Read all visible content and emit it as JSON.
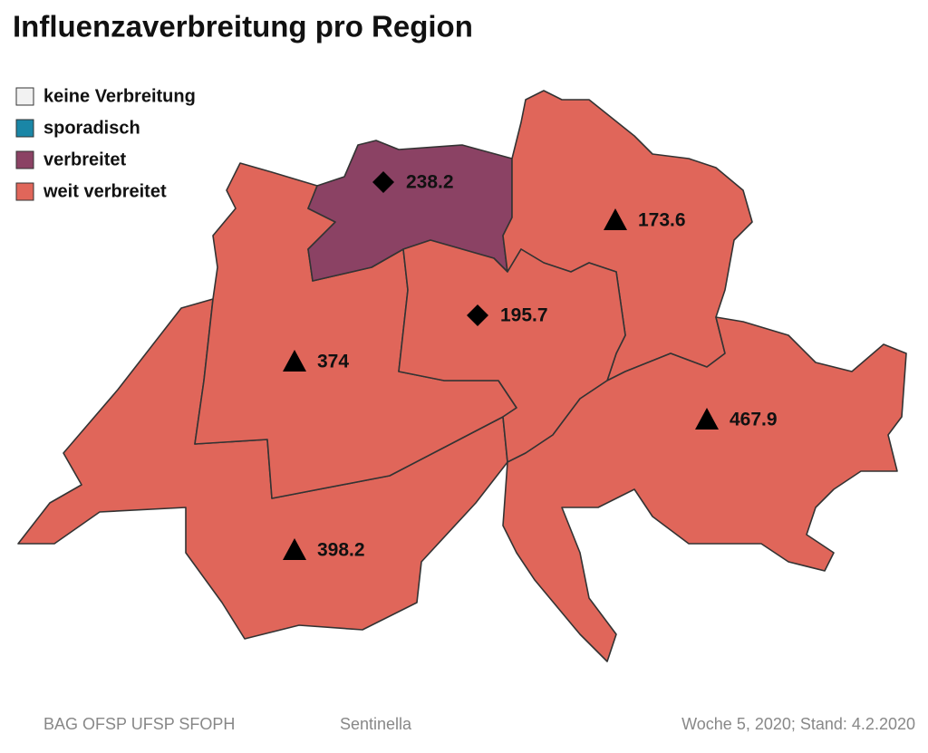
{
  "title": "Influenzaverbreitung pro Region",
  "legend": [
    {
      "label": "keine Verbreitung",
      "color": "#f2f2f2"
    },
    {
      "label": "sporadisch",
      "color": "#1a86a6"
    },
    {
      "label": "verbreitet",
      "color": "#8b4264"
    },
    {
      "label": "weit verbreitet",
      "color": "#e0665a"
    }
  ],
  "regions": [
    {
      "value": 238.2,
      "marker": "diamond",
      "color": "#8b4264"
    },
    {
      "value": 173.6,
      "marker": "triangle",
      "color": "#e0665a"
    },
    {
      "value": 195.7,
      "marker": "diamond",
      "color": "#e0665a"
    },
    {
      "value": 374,
      "marker": "triangle",
      "color": "#e0665a"
    },
    {
      "value": 467.9,
      "marker": "triangle",
      "color": "#e0665a"
    },
    {
      "value": 398.2,
      "marker": "triangle",
      "color": "#e0665a"
    }
  ],
  "footer": {
    "source": "BAG OFSP UFSP SFOPH",
    "system": "Sentinella",
    "date": "Woche 5, 2020; Stand: 4.2.2020"
  }
}
